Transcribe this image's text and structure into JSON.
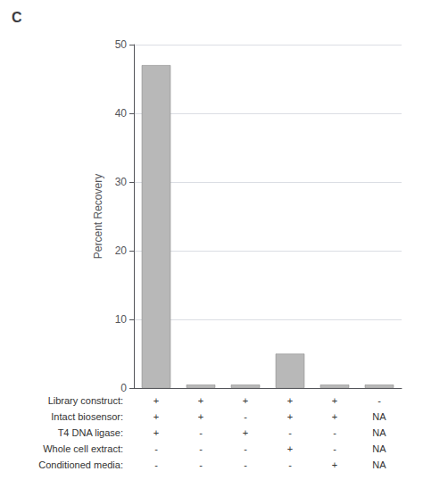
{
  "chart_data": {
    "type": "bar",
    "title": "C",
    "categories": [
      null,
      null,
      null,
      null,
      null,
      null
    ],
    "values": [
      47.0,
      0.5,
      0.5,
      5.0,
      0.5,
      0.5
    ],
    "color": "#b8b8b8",
    "ylabel": "Percent Recovery",
    "ylim": [
      0,
      50
    ],
    "yticks": [
      0,
      10,
      20,
      30,
      40,
      50
    ],
    "grid": true,
    "tick_labels": "y",
    "table": [
      {
        "label": "Library construct:",
        "values": [
          "+",
          "+",
          "+",
          "+",
          "+",
          "-"
        ]
      },
      {
        "label": "Intact biosensor:",
        "values": [
          "+",
          "+",
          "-",
          "+",
          "+",
          "NA"
        ]
      },
      {
        "label": "T4 DNA ligase:",
        "values": [
          "+",
          "-",
          "+",
          "-",
          "-",
          "NA"
        ]
      },
      {
        "label": "Whole cell extract:",
        "values": [
          "-",
          "-",
          "-",
          "+",
          "-",
          "NA"
        ]
      },
      {
        "label": "Conditioned media:",
        "values": [
          "-",
          "-",
          "-",
          "-",
          "+",
          "NA"
        ]
      }
    ]
  }
}
